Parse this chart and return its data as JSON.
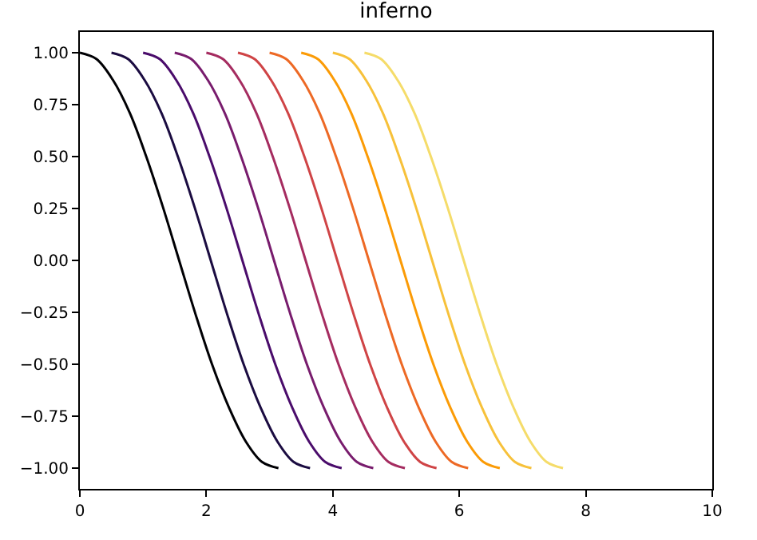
{
  "chart_data": {
    "type": "line",
    "title": "inferno",
    "xlim": [
      0,
      10
    ],
    "xticks": [
      0,
      2,
      4,
      6,
      8,
      10
    ],
    "ylim": [
      -1.1,
      1.1
    ],
    "yticks": [
      {
        "value": -1,
        "label": "−1.00"
      },
      {
        "value": -0.75,
        "label": "−0.75"
      },
      {
        "value": -0.5,
        "label": "−0.50"
      },
      {
        "value": -0.25,
        "label": "−0.25"
      },
      {
        "value": 0,
        "label": "0.00"
      },
      {
        "value": 0.25,
        "label": "0.25"
      },
      {
        "value": 0.5,
        "label": "0.50"
      },
      {
        "value": 0.75,
        "label": "0.75"
      },
      {
        "value": 1,
        "label": "1.00"
      }
    ],
    "grid": false,
    "marker": "none",
    "line_style": "solid",
    "series": [
      {
        "color": "#000004",
        "x": [
          0,
          0.26,
          0.52,
          0.79,
          1.05,
          1.31,
          1.57,
          1.83,
          2.09,
          2.36,
          2.62,
          2.88,
          3.14
        ],
        "values": [
          1,
          0.97,
          0.87,
          0.71,
          0.5,
          0.26,
          0,
          -0.26,
          -0.5,
          -0.71,
          -0.87,
          -0.97,
          -1
        ]
      },
      {
        "color": "#1b0c41",
        "x": [
          0.5,
          0.76,
          1.02,
          1.29,
          1.55,
          1.81,
          2.07,
          2.33,
          2.59,
          2.86,
          3.12,
          3.38,
          3.64
        ],
        "values": [
          1,
          0.97,
          0.87,
          0.71,
          0.5,
          0.26,
          0,
          -0.26,
          -0.5,
          -0.71,
          -0.87,
          -0.97,
          -1
        ]
      },
      {
        "color": "#4a0c6b",
        "x": [
          1,
          1.26,
          1.52,
          1.79,
          2.05,
          2.31,
          2.57,
          2.83,
          3.09,
          3.36,
          3.62,
          3.88,
          4.14
        ],
        "values": [
          1,
          0.97,
          0.87,
          0.71,
          0.5,
          0.26,
          0,
          -0.26,
          -0.5,
          -0.71,
          -0.87,
          -0.97,
          -1
        ]
      },
      {
        "color": "#781c6d",
        "x": [
          1.5,
          1.76,
          2.02,
          2.29,
          2.55,
          2.81,
          3.07,
          3.33,
          3.59,
          3.86,
          4.12,
          4.38,
          4.64
        ],
        "values": [
          1,
          0.97,
          0.87,
          0.71,
          0.5,
          0.26,
          0,
          -0.26,
          -0.5,
          -0.71,
          -0.87,
          -0.97,
          -1
        ]
      },
      {
        "color": "#a52c60",
        "x": [
          2,
          2.26,
          2.52,
          2.79,
          3.05,
          3.31,
          3.57,
          3.83,
          4.09,
          4.36,
          4.62,
          4.88,
          5.14
        ],
        "values": [
          1,
          0.97,
          0.87,
          0.71,
          0.5,
          0.26,
          0,
          -0.26,
          -0.5,
          -0.71,
          -0.87,
          -0.97,
          -1
        ]
      },
      {
        "color": "#cf4446",
        "x": [
          2.5,
          2.76,
          3.02,
          3.29,
          3.55,
          3.81,
          4.07,
          4.33,
          4.59,
          4.86,
          5.12,
          5.38,
          5.64
        ],
        "values": [
          1,
          0.97,
          0.87,
          0.71,
          0.5,
          0.26,
          0,
          -0.26,
          -0.5,
          -0.71,
          -0.87,
          -0.97,
          -1
        ]
      },
      {
        "color": "#ed6925",
        "x": [
          3,
          3.26,
          3.52,
          3.79,
          4.05,
          4.31,
          4.57,
          4.83,
          5.09,
          5.36,
          5.62,
          5.88,
          6.14
        ],
        "values": [
          1,
          0.97,
          0.87,
          0.71,
          0.5,
          0.26,
          0,
          -0.26,
          -0.5,
          -0.71,
          -0.87,
          -0.97,
          -1
        ]
      },
      {
        "color": "#fb9b06",
        "x": [
          3.5,
          3.76,
          4.02,
          4.29,
          4.55,
          4.81,
          5.07,
          5.33,
          5.59,
          5.86,
          6.12,
          6.38,
          6.64
        ],
        "values": [
          1,
          0.97,
          0.87,
          0.71,
          0.5,
          0.26,
          0,
          -0.26,
          -0.5,
          -0.71,
          -0.87,
          -0.97,
          -1
        ]
      },
      {
        "color": "#f7c13a",
        "x": [
          4,
          4.26,
          4.52,
          4.79,
          5.05,
          5.31,
          5.57,
          5.83,
          6.09,
          6.36,
          6.62,
          6.88,
          7.14
        ],
        "values": [
          1,
          0.97,
          0.87,
          0.71,
          0.5,
          0.26,
          0,
          -0.26,
          -0.5,
          -0.71,
          -0.87,
          -0.97,
          -1
        ]
      },
      {
        "color": "#f5dc6a",
        "x": [
          4.5,
          4.76,
          5.02,
          5.29,
          5.55,
          5.81,
          6.07,
          6.33,
          6.59,
          6.86,
          7.12,
          7.38,
          7.64
        ],
        "values": [
          1,
          0.97,
          0.87,
          0.71,
          0.5,
          0.26,
          0,
          -0.26,
          -0.5,
          -0.71,
          -0.87,
          -0.97,
          -1
        ]
      }
    ]
  }
}
